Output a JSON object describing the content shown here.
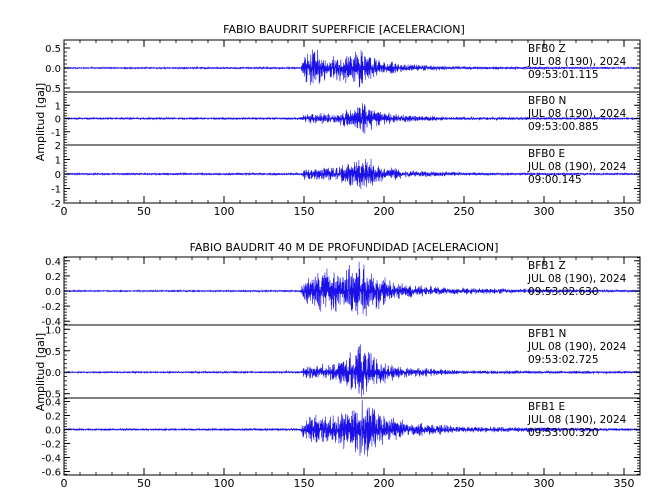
{
  "chart_data": [
    {
      "type": "line",
      "title": "FABIO BAUDRIT SUPERFICIE [ACELERACION]",
      "ylabel": "Amplitud [gal]",
      "xlabel": "",
      "xlim": [
        0,
        360
      ],
      "xticks": [
        0,
        50,
        100,
        150,
        200,
        250,
        300,
        350
      ],
      "grid": false,
      "series": [
        {
          "name": "BFB0 Z",
          "station": "BFB0",
          "component": "Z",
          "date": "JUL 08 (190), 2024",
          "time": "09:53:01.115",
          "ylim": [
            -0.6,
            0.7
          ],
          "yticks": [
            -0.5,
            0.0,
            0.5
          ],
          "tick_labels": [
            "-0.5",
            "0.0",
            "0.5"
          ],
          "envelope": [
            {
              "t": 0,
              "a": 0.02
            },
            {
              "t": 148,
              "a": 0.03
            },
            {
              "t": 150,
              "a": 0.35
            },
            {
              "t": 155,
              "a": 0.55
            },
            {
              "t": 165,
              "a": 0.3
            },
            {
              "t": 180,
              "a": 0.45
            },
            {
              "t": 186,
              "a": 0.6
            },
            {
              "t": 192,
              "a": 0.3
            },
            {
              "t": 210,
              "a": 0.12
            },
            {
              "t": 240,
              "a": 0.05
            },
            {
              "t": 360,
              "a": 0.02
            }
          ]
        },
        {
          "name": "BFB0 N",
          "station": "BFB0",
          "component": "N",
          "date": "JUL 08 (190), 2024",
          "time": "09:53:00.885",
          "ylim": [
            -2.0,
            2.0
          ],
          "yticks": [
            -1,
            0,
            1
          ],
          "tick_labels": [
            "-1",
            "0",
            "1"
          ],
          "envelope": [
            {
              "t": 0,
              "a": 0.08
            },
            {
              "t": 148,
              "a": 0.1
            },
            {
              "t": 150,
              "a": 0.4
            },
            {
              "t": 170,
              "a": 0.5
            },
            {
              "t": 183,
              "a": 1.0
            },
            {
              "t": 188,
              "a": 1.5
            },
            {
              "t": 193,
              "a": 0.8
            },
            {
              "t": 210,
              "a": 0.35
            },
            {
              "t": 240,
              "a": 0.15
            },
            {
              "t": 360,
              "a": 0.08
            }
          ]
        },
        {
          "name": "BFB0 E",
          "station": "BFB0",
          "component": "E",
          "date": "JUL 08 (190), 2024",
          "time": "09:00.145",
          "ylim": [
            -2.0,
            2.0
          ],
          "yticks": [
            -2,
            -1,
            0,
            1,
            2
          ],
          "tick_labels": [
            "-2",
            "-1",
            "0",
            "1",
            "2"
          ],
          "envelope": [
            {
              "t": 0,
              "a": 0.08
            },
            {
              "t": 148,
              "a": 0.1
            },
            {
              "t": 150,
              "a": 0.45
            },
            {
              "t": 170,
              "a": 0.55
            },
            {
              "t": 185,
              "a": 1.1
            },
            {
              "t": 190,
              "a": 1.4
            },
            {
              "t": 196,
              "a": 0.7
            },
            {
              "t": 215,
              "a": 0.3
            },
            {
              "t": 250,
              "a": 0.12
            },
            {
              "t": 360,
              "a": 0.08
            }
          ]
        }
      ]
    },
    {
      "type": "line",
      "title": "FABIO BAUDRIT 40 M DE PROFUNDIDAD [ACELERACION]",
      "ylabel": "Amplitud [gal]",
      "xlabel": "",
      "xlim": [
        0,
        360
      ],
      "xticks": [
        0,
        50,
        100,
        150,
        200,
        250,
        300,
        350
      ],
      "grid": false,
      "series": [
        {
          "name": "BFB1 Z",
          "station": "BFB1",
          "component": "Z",
          "date": "JUL 08 (190), 2024",
          "time": "09:53:02.630",
          "ylim": [
            -0.45,
            0.45
          ],
          "yticks": [
            -0.4,
            -0.2,
            0.0,
            0.2,
            0.4
          ],
          "tick_labels": [
            "-0.4",
            "-0.2",
            "0.0",
            "0.2",
            "0.4"
          ],
          "envelope": [
            {
              "t": 0,
              "a": 0.01
            },
            {
              "t": 148,
              "a": 0.015
            },
            {
              "t": 150,
              "a": 0.2
            },
            {
              "t": 160,
              "a": 0.3
            },
            {
              "t": 178,
              "a": 0.35
            },
            {
              "t": 185,
              "a": 0.44
            },
            {
              "t": 192,
              "a": 0.3
            },
            {
              "t": 210,
              "a": 0.12
            },
            {
              "t": 240,
              "a": 0.05
            },
            {
              "t": 360,
              "a": 0.015
            }
          ]
        },
        {
          "name": "BFB1 N",
          "station": "BFB1",
          "component": "N",
          "date": "JUL 08 (190), 2024",
          "time": "09:53:02.725",
          "ylim": [
            -0.6,
            1.1
          ],
          "yticks": [
            -0.5,
            0.0,
            0.5,
            1.0
          ],
          "tick_labels": [
            "-0.5",
            "0.0",
            "0.5",
            "1.0"
          ],
          "envelope": [
            {
              "t": 0,
              "a": 0.02
            },
            {
              "t": 148,
              "a": 0.03
            },
            {
              "t": 150,
              "a": 0.15
            },
            {
              "t": 170,
              "a": 0.25
            },
            {
              "t": 180,
              "a": 0.5
            },
            {
              "t": 186,
              "a": 0.9
            },
            {
              "t": 192,
              "a": 0.45
            },
            {
              "t": 210,
              "a": 0.15
            },
            {
              "t": 250,
              "a": 0.05
            },
            {
              "t": 360,
              "a": 0.03
            }
          ]
        },
        {
          "name": "BFB1 E",
          "station": "BFB1",
          "component": "E",
          "date": "JUL 08 (190), 2024",
          "time": "09:53:00.320",
          "ylim": [
            -0.65,
            0.45
          ],
          "yticks": [
            -0.6,
            -0.4,
            -0.2,
            0.0,
            0.2,
            0.4
          ],
          "tick_labels": [
            "-0.6",
            "-0.4",
            "-0.2",
            "0.0",
            "0.2",
            "0.4"
          ],
          "envelope": [
            {
              "t": 0,
              "a": 0.015
            },
            {
              "t": 148,
              "a": 0.02
            },
            {
              "t": 150,
              "a": 0.18
            },
            {
              "t": 165,
              "a": 0.25
            },
            {
              "t": 180,
              "a": 0.35
            },
            {
              "t": 188,
              "a": 0.5
            },
            {
              "t": 195,
              "a": 0.3
            },
            {
              "t": 215,
              "a": 0.12
            },
            {
              "t": 250,
              "a": 0.05
            },
            {
              "t": 360,
              "a": 0.02
            }
          ]
        }
      ]
    }
  ],
  "colors": {
    "trace": "#1a10e8",
    "axis": "#000000",
    "background": "#ffffff"
  }
}
